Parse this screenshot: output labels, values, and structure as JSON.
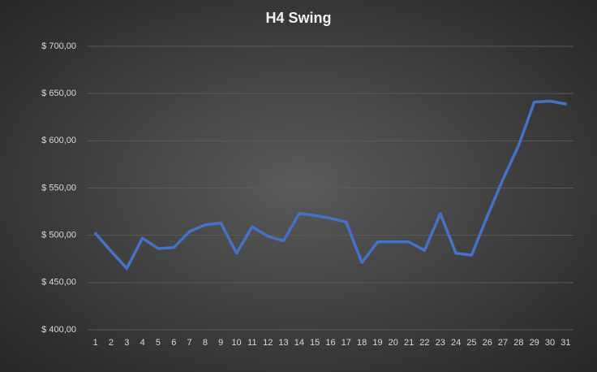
{
  "chart_data": {
    "type": "line",
    "title": "H4 Swing",
    "categories": [
      "1",
      "2",
      "3",
      "4",
      "5",
      "6",
      "7",
      "8",
      "9",
      "10",
      "11",
      "12",
      "13",
      "14",
      "15",
      "16",
      "17",
      "18",
      "19",
      "20",
      "21",
      "22",
      "23",
      "24",
      "25",
      "26",
      "27",
      "28",
      "29",
      "30",
      "31"
    ],
    "values": [
      502,
      483,
      465,
      497,
      486,
      487,
      504,
      511,
      513,
      481,
      509,
      499,
      494,
      523,
      521,
      518,
      514,
      471,
      493,
      493,
      493,
      484,
      523,
      481,
      479,
      520,
      559,
      595,
      641,
      642,
      639
    ],
    "color": "#4472c4",
    "ylim": [
      400,
      700
    ],
    "yticks": [
      {
        "value": 400,
        "label": "$ 400,00"
      },
      {
        "value": 450,
        "label": "$ 450,00"
      },
      {
        "value": 500,
        "label": "$ 500,00"
      },
      {
        "value": 550,
        "label": "$ 550,00"
      },
      {
        "value": 600,
        "label": "$ 600,00"
      },
      {
        "value": 650,
        "label": "$ 650,00"
      },
      {
        "value": 700,
        "label": "$ 700,00"
      }
    ],
    "grid": true
  }
}
